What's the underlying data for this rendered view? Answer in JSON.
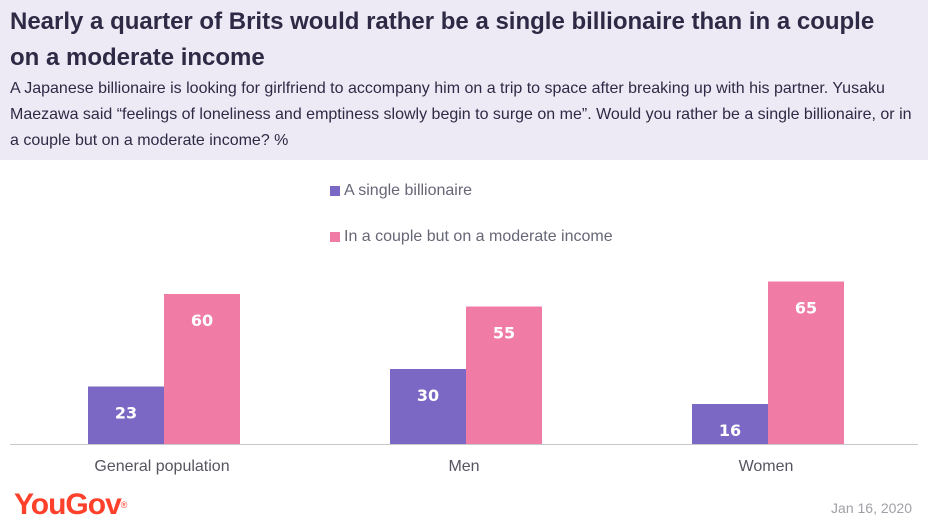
{
  "header": {
    "title": "Nearly a quarter of Brits would rather be a single billionaire than in a couple on a moderate income",
    "subtitle": "A Japanese billionaire is looking for girlfriend to accompany him on a trip to space after breaking up with his partner. Yusaku Maezawa said “feelings of loneliness and emptiness slowly begin to surge on me”. Would you rather be a single billionaire, or in a couple but on a moderate income? %"
  },
  "chart_data": {
    "type": "bar",
    "title": "",
    "xlabel": "",
    "ylabel": "",
    "categories": [
      "General population",
      "Men",
      "Women"
    ],
    "series": [
      {
        "name": "A single billionaire",
        "values": [
          23,
          30,
          16
        ],
        "color": "#7b68c4"
      },
      {
        "name": "In a couple but on a moderate income",
        "values": [
          60,
          55,
          65
        ],
        "color": "#f07ca5"
      }
    ],
    "ylim": [
      0,
      70
    ],
    "grid": false,
    "legend": "top-center"
  },
  "footer": {
    "brand": "YouGov",
    "brand_mark": "®",
    "date": "Jan 16, 2020"
  },
  "colors": {
    "header_bg": "#edeaf5",
    "brand": "#ff412c"
  }
}
